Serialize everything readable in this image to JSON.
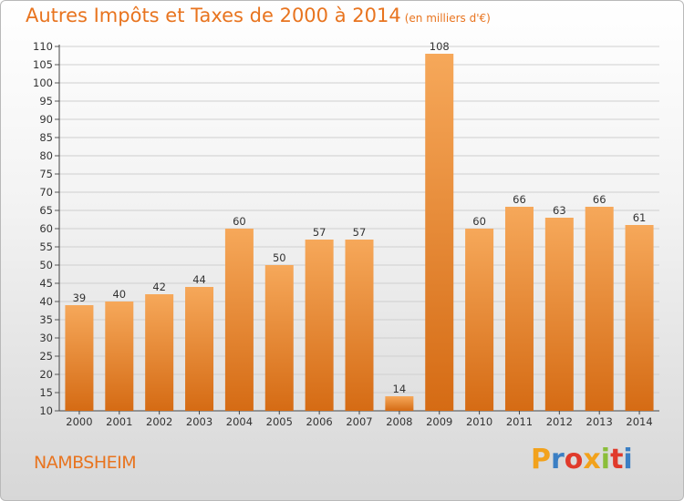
{
  "header": {
    "title": "Autres Impôts et Taxes de 2000 à 2014",
    "unit": "(en milliers d'€)"
  },
  "footer": {
    "commune": "NAMBSHEIM",
    "logo_letters": [
      "P",
      "r",
      "o",
      "x",
      "i",
      "t",
      "i"
    ],
    "logo_colors": [
      "#f2a21c",
      "#3b7fc4",
      "#e03a2b",
      "#f2a21c",
      "#8bbe3a",
      "#e03a2b",
      "#3b7fc4"
    ]
  },
  "colors": {
    "accent": "#e8741f",
    "bar_top": "#f6a85a",
    "bar_bottom": "#d56b14"
  },
  "chart_data": {
    "type": "bar",
    "categories": [
      "2000",
      "2001",
      "2002",
      "2003",
      "2004",
      "2005",
      "2006",
      "2007",
      "2008",
      "2009",
      "2010",
      "2011",
      "2012",
      "2013",
      "2014"
    ],
    "values": [
      39,
      40,
      42,
      44,
      60,
      50,
      57,
      57,
      14,
      108,
      60,
      66,
      63,
      66,
      61
    ],
    "title": "Autres Impôts et Taxes de 2000 à 2014",
    "xlabel": "",
    "ylabel": "",
    "ylim": [
      10,
      110
    ],
    "yticks": [
      10,
      15,
      20,
      25,
      30,
      35,
      40,
      45,
      50,
      55,
      60,
      65,
      70,
      75,
      80,
      85,
      90,
      95,
      100,
      105,
      110
    ],
    "grid": true,
    "legend": "none"
  }
}
